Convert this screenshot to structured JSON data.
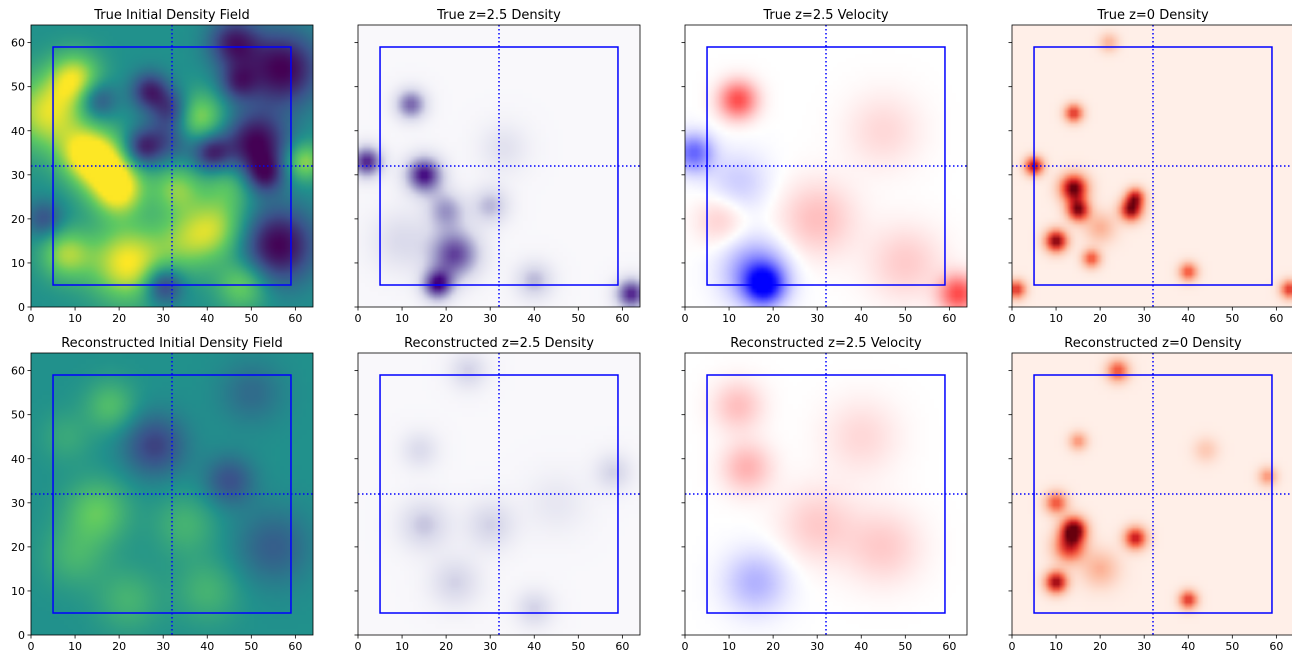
{
  "chart_data": [
    {
      "type": "heatmap",
      "title": "True Initial Density Field",
      "colormap": "viridis",
      "xlim": [
        0,
        64
      ],
      "ylim": [
        0,
        64
      ],
      "xticks": [
        0,
        10,
        20,
        30,
        40,
        50,
        60
      ],
      "yticks": [
        0,
        10,
        20,
        30,
        40,
        50,
        60
      ],
      "y_tick_labels_shown": true,
      "box": [
        [
          5,
          5
        ],
        [
          59,
          5
        ],
        [
          59,
          59
        ],
        [
          5,
          59
        ]
      ],
      "crosshair": {
        "x": 32,
        "y": 32
      },
      "blobs": [
        [
          4,
          44,
          6,
          0.9
        ],
        [
          10,
          52,
          4,
          0.8
        ],
        [
          15,
          47,
          3,
          -0.6
        ],
        [
          17,
          32,
          5,
          1.0
        ],
        [
          12,
          35,
          4,
          0.7
        ],
        [
          20,
          26,
          4,
          0.8
        ],
        [
          22,
          10,
          6,
          1.0
        ],
        [
          8,
          12,
          4,
          0.7
        ],
        [
          27,
          49,
          3,
          -0.8
        ],
        [
          25,
          36,
          3,
          -0.8
        ],
        [
          31,
          38,
          4,
          -0.5
        ],
        [
          30,
          5,
          3,
          -0.8
        ],
        [
          32,
          45,
          3,
          -0.6
        ],
        [
          33,
          27,
          4,
          0.6
        ],
        [
          38,
          43,
          4,
          0.7
        ],
        [
          41,
          35,
          3,
          -0.8
        ],
        [
          42,
          18,
          5,
          0.7
        ],
        [
          46,
          60,
          4,
          -0.8
        ],
        [
          47,
          51,
          3,
          -0.6
        ],
        [
          51,
          37,
          5,
          -1.0
        ],
        [
          53,
          30,
          3,
          -0.7
        ],
        [
          56,
          14,
          6,
          -1.0
        ],
        [
          57,
          54,
          6,
          -1.0
        ],
        [
          48,
          5,
          4,
          0.6
        ],
        [
          3,
          20,
          3,
          -0.5
        ],
        [
          62,
          33,
          3,
          0.7
        ],
        [
          35,
          15,
          5,
          0.5
        ],
        [
          45,
          28,
          4,
          0.4
        ]
      ]
    },
    {
      "type": "heatmap",
      "title": "True z=2.5 Density",
      "colormap": "Purples",
      "xlim": [
        0,
        64
      ],
      "ylim": [
        0,
        64
      ],
      "xticks": [
        0,
        10,
        20,
        30,
        40,
        50,
        60
      ],
      "yticks": [
        0,
        10,
        20,
        30,
        40,
        50,
        60
      ],
      "y_tick_labels_shown": false,
      "box": [
        [
          5,
          5
        ],
        [
          59,
          5
        ],
        [
          59,
          59
        ],
        [
          5,
          59
        ]
      ],
      "crosshair": {
        "x": 32,
        "y": 32
      },
      "blobs": [
        [
          12,
          46,
          2.5,
          0.7
        ],
        [
          15,
          30,
          3,
          0.95
        ],
        [
          2,
          33,
          2.5,
          0.9
        ],
        [
          22,
          12,
          4,
          0.8
        ],
        [
          18,
          5,
          2.5,
          0.9
        ],
        [
          20,
          22,
          3,
          0.5
        ],
        [
          30,
          23,
          3,
          0.4
        ],
        [
          40,
          6,
          3,
          0.4
        ],
        [
          62,
          3,
          2.5,
          0.9
        ],
        [
          33,
          36,
          4,
          0.2
        ],
        [
          10,
          15,
          5,
          0.25
        ]
      ]
    },
    {
      "type": "heatmap",
      "title": "True z=2.5 Velocity",
      "colormap": "bwr",
      "xlim": [
        0,
        64
      ],
      "ylim": [
        0,
        64
      ],
      "xticks": [
        0,
        10,
        20,
        30,
        40,
        50,
        60
      ],
      "yticks": [
        0,
        10,
        20,
        30,
        40,
        50,
        60
      ],
      "y_tick_labels_shown": false,
      "box": [
        [
          5,
          5
        ],
        [
          59,
          5
        ],
        [
          59,
          59
        ],
        [
          5,
          59
        ]
      ],
      "crosshair": {
        "x": 32,
        "y": 32
      },
      "blobs": [
        [
          12,
          47,
          3,
          0.7
        ],
        [
          18,
          5,
          3,
          -0.9
        ],
        [
          16,
          8,
          5,
          -0.5
        ],
        [
          2,
          35,
          3,
          -0.6
        ],
        [
          12,
          28,
          5,
          -0.2
        ],
        [
          62,
          3,
          3,
          0.7
        ],
        [
          30,
          20,
          6,
          0.25
        ],
        [
          45,
          40,
          6,
          0.15
        ],
        [
          50,
          10,
          6,
          0.2
        ],
        [
          8,
          20,
          4,
          0.2
        ]
      ]
    },
    {
      "type": "heatmap",
      "title": "True z=0 Density",
      "colormap": "Reds",
      "xlim": [
        0,
        64
      ],
      "ylim": [
        0,
        64
      ],
      "xticks": [
        0,
        10,
        20,
        30,
        40,
        50,
        60
      ],
      "yticks": [
        0,
        10,
        20,
        30,
        40,
        50,
        60
      ],
      "y_tick_labels_shown": false,
      "box": [
        [
          5,
          5
        ],
        [
          59,
          5
        ],
        [
          59,
          59
        ],
        [
          5,
          59
        ]
      ],
      "crosshair": {
        "x": 32,
        "y": 32
      },
      "blobs": [
        [
          14,
          27,
          2.2,
          1.0
        ],
        [
          15,
          22,
          1.8,
          0.9
        ],
        [
          10,
          15,
          1.8,
          0.95
        ],
        [
          27,
          22,
          1.8,
          0.9
        ],
        [
          28,
          25,
          1.5,
          0.7
        ],
        [
          5,
          32,
          1.5,
          0.85
        ],
        [
          14,
          44,
          1.5,
          0.7
        ],
        [
          18,
          11,
          1.5,
          0.6
        ],
        [
          40,
          8,
          1.5,
          0.6
        ],
        [
          1,
          4,
          1.5,
          0.7
        ],
        [
          63,
          4,
          1.5,
          0.7
        ],
        [
          22,
          60,
          1.5,
          0.3
        ],
        [
          20,
          18,
          2.5,
          0.3
        ]
      ]
    },
    {
      "type": "heatmap",
      "title": "Reconstructed Initial Density Field",
      "colormap": "viridis",
      "xlim": [
        0,
        64
      ],
      "ylim": [
        0,
        64
      ],
      "xticks": [
        0,
        10,
        20,
        30,
        40,
        50,
        60
      ],
      "yticks": [
        0,
        10,
        20,
        30,
        40,
        50,
        60
      ],
      "y_tick_labels_shown": true,
      "box": [
        [
          5,
          5
        ],
        [
          59,
          5
        ],
        [
          59,
          59
        ],
        [
          5,
          59
        ]
      ],
      "crosshair": {
        "x": 32,
        "y": 32
      },
      "blobs": [
        [
          15,
          28,
          5,
          0.5
        ],
        [
          18,
          52,
          4,
          0.4
        ],
        [
          10,
          18,
          5,
          0.3
        ],
        [
          28,
          43,
          5,
          -0.6
        ],
        [
          45,
          35,
          4,
          -0.5
        ],
        [
          55,
          20,
          6,
          -0.4
        ],
        [
          40,
          10,
          5,
          0.3
        ],
        [
          35,
          25,
          5,
          0.3
        ],
        [
          50,
          55,
          5,
          -0.3
        ],
        [
          22,
          8,
          5,
          0.3
        ],
        [
          8,
          45,
          4,
          0.2
        ]
      ]
    },
    {
      "type": "heatmap",
      "title": "Reconstructed z=2.5 Density",
      "colormap": "Purples",
      "xlim": [
        0,
        64
      ],
      "ylim": [
        0,
        64
      ],
      "xticks": [
        0,
        10,
        20,
        30,
        40,
        50,
        60
      ],
      "yticks": [
        0,
        10,
        20,
        30,
        40,
        50,
        60
      ],
      "y_tick_labels_shown": false,
      "box": [
        [
          5,
          5
        ],
        [
          59,
          5
        ],
        [
          59,
          59
        ],
        [
          5,
          59
        ]
      ],
      "crosshair": {
        "x": 32,
        "y": 32
      },
      "blobs": [
        [
          15,
          25,
          4,
          0.35
        ],
        [
          22,
          12,
          4,
          0.3
        ],
        [
          30,
          25,
          4,
          0.3
        ],
        [
          40,
          6,
          3,
          0.3
        ],
        [
          14,
          42,
          3,
          0.25
        ],
        [
          58,
          37,
          3,
          0.3
        ],
        [
          25,
          60,
          3,
          0.3
        ],
        [
          45,
          30,
          5,
          0.15
        ]
      ]
    },
    {
      "type": "heatmap",
      "title": "Reconstructed z=2.5 Velocity",
      "colormap": "bwr",
      "xlim": [
        0,
        64
      ],
      "ylim": [
        0,
        64
      ],
      "xticks": [
        0,
        10,
        20,
        30,
        40,
        50,
        60
      ],
      "yticks": [
        0,
        10,
        20,
        30,
        40,
        50,
        60
      ],
      "y_tick_labels_shown": false,
      "box": [
        [
          5,
          5
        ],
        [
          59,
          5
        ],
        [
          59,
          59
        ],
        [
          5,
          59
        ]
      ],
      "crosshair": {
        "x": 32,
        "y": 32
      },
      "blobs": [
        [
          14,
          38,
          4,
          0.3
        ],
        [
          12,
          52,
          4,
          0.25
        ],
        [
          16,
          12,
          5,
          -0.3
        ],
        [
          30,
          25,
          6,
          0.2
        ],
        [
          45,
          20,
          6,
          0.2
        ],
        [
          40,
          45,
          6,
          0.15
        ]
      ]
    },
    {
      "type": "heatmap",
      "title": "Reconstructed z=0 Density",
      "colormap": "Reds",
      "xlim": [
        0,
        64
      ],
      "ylim": [
        0,
        64
      ],
      "xticks": [
        0,
        10,
        20,
        30,
        40,
        50,
        60
      ],
      "yticks": [
        0,
        10,
        20,
        30,
        40,
        50,
        60
      ],
      "y_tick_labels_shown": false,
      "box": [
        [
          5,
          5
        ],
        [
          59,
          5
        ],
        [
          59,
          59
        ],
        [
          5,
          59
        ]
      ],
      "crosshair": {
        "x": 32,
        "y": 32
      },
      "blobs": [
        [
          14,
          24,
          2,
          1.0
        ],
        [
          13,
          20,
          2.5,
          0.7
        ],
        [
          10,
          12,
          1.8,
          0.9
        ],
        [
          28,
          22,
          1.8,
          0.8
        ],
        [
          10,
          30,
          1.8,
          0.6
        ],
        [
          40,
          8,
          1.5,
          0.7
        ],
        [
          24,
          60,
          1.8,
          0.6
        ],
        [
          15,
          44,
          1.5,
          0.4
        ],
        [
          58,
          36,
          1.5,
          0.4
        ],
        [
          20,
          15,
          3,
          0.3
        ],
        [
          44,
          42,
          2,
          0.2
        ]
      ]
    }
  ]
}
